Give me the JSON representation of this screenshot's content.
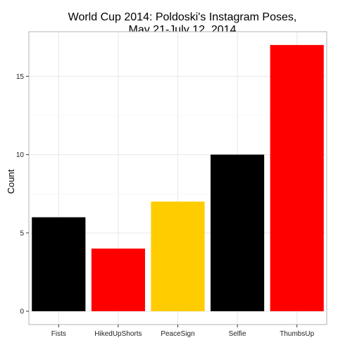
{
  "chart_data": {
    "type": "bar",
    "title_lines": [
      "World Cup 2014: Poldoski's Instagram Poses,",
      "May 21-July 12, 2014"
    ],
    "xlabel": "",
    "ylabel": "Count",
    "categories": [
      "Fists",
      "HikedUpShorts",
      "PeaceSign",
      "Selfie",
      "ThumbsUp"
    ],
    "values": [
      6,
      4,
      7,
      10,
      17
    ],
    "bar_colors": [
      "#000000",
      "#ff0000",
      "#ffcc00",
      "#000000",
      "#ff0000"
    ],
    "ylim": [
      -0.85,
      17.85
    ],
    "yticks": [
      0,
      5,
      10,
      15
    ],
    "grid": true,
    "legend": "none"
  }
}
